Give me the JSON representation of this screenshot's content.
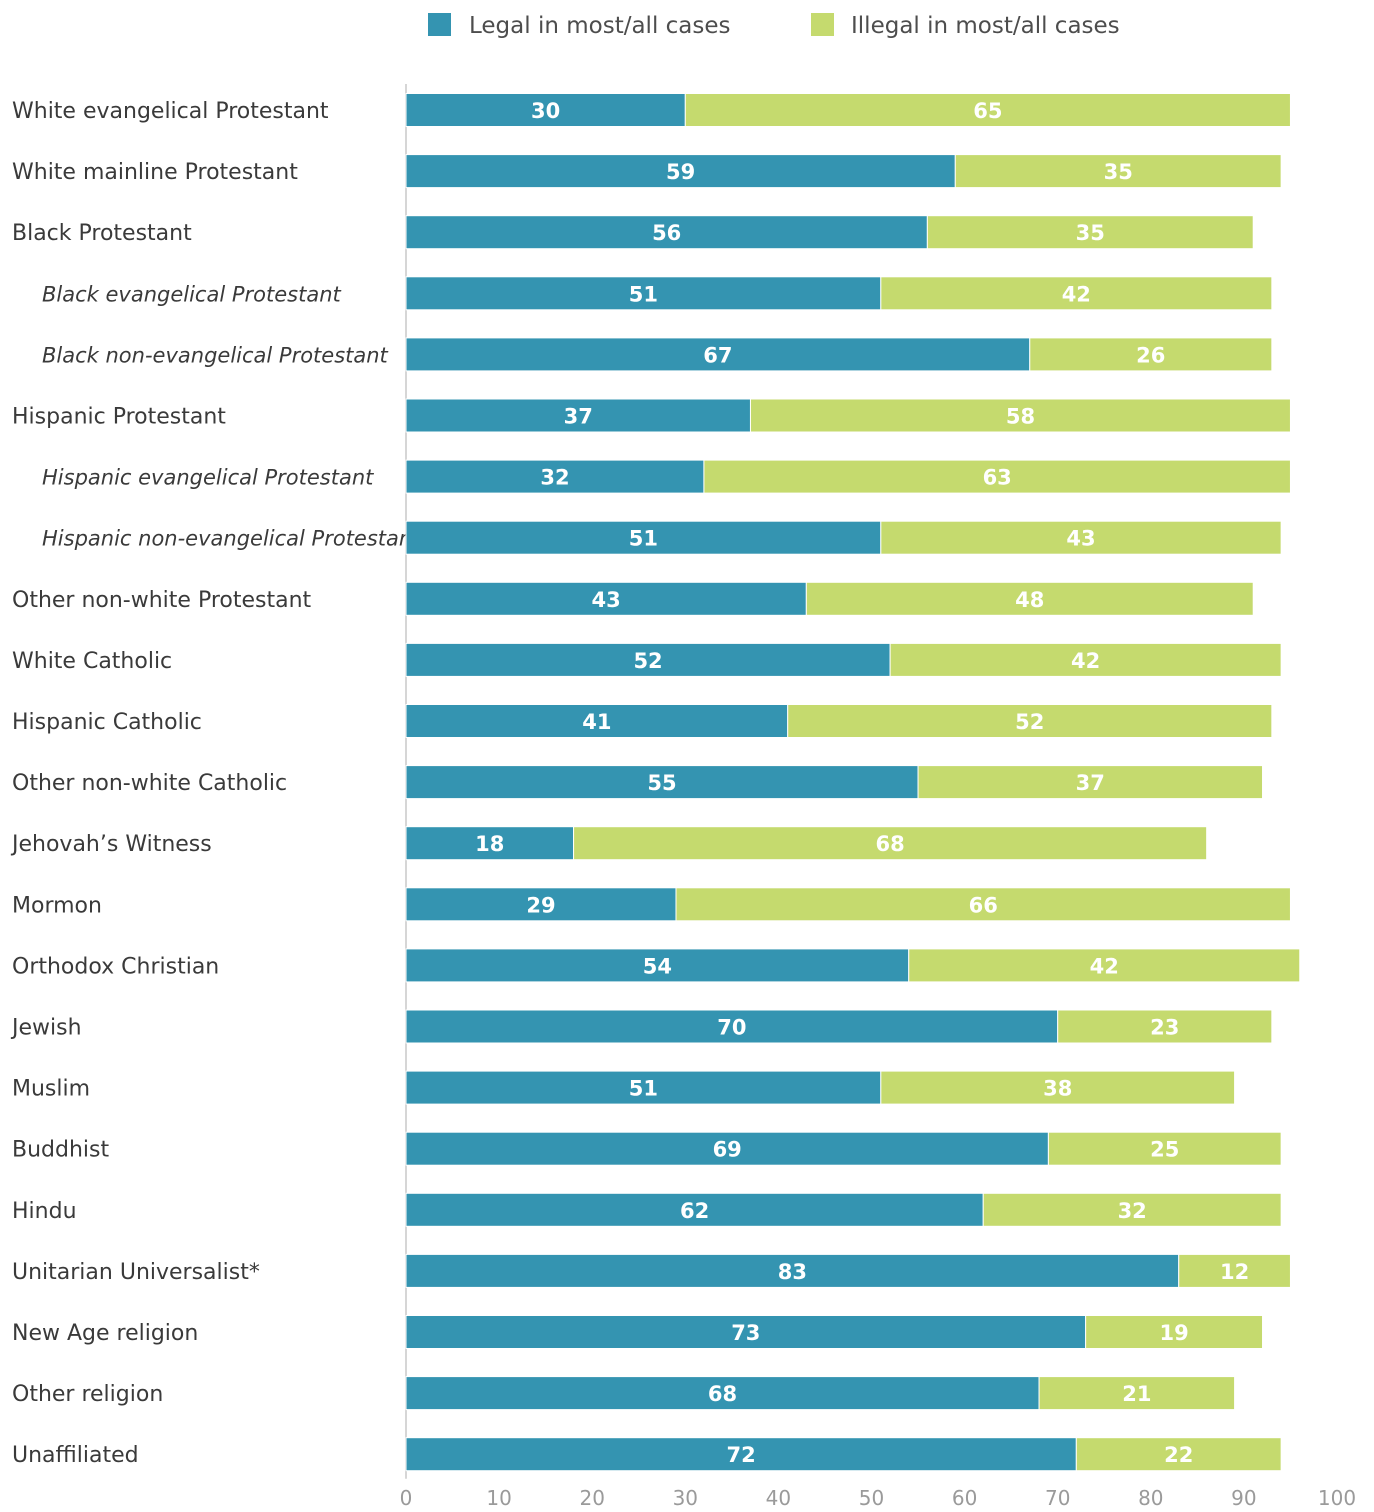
{
  "chart_data": {
    "type": "bar",
    "orientation": "horizontal",
    "stacked": true,
    "legend_position": "top",
    "grid": false,
    "xlim": [
      0,
      100
    ],
    "x_ticks": [
      0,
      10,
      20,
      30,
      40,
      50,
      60,
      70,
      80,
      90,
      100
    ],
    "categories": [
      "White evangelical Protestant",
      "White mainline Protestant",
      "Black Protestant",
      "Black evangelical Protestant",
      "Black non-evangelical Protestant",
      "Hispanic Protestant",
      "Hispanic evangelical Protestant",
      "Hispanic non-evangelical Protestant",
      "Other non-white Protestant",
      "White Catholic",
      "Hispanic Catholic",
      "Other non-white Catholic",
      "Jehovah’s Witness",
      "Mormon",
      "Orthodox Christian",
      "Jewish",
      "Muslim",
      "Buddhist",
      "Hindu",
      "Unitarian Universalist*",
      "New Age religion",
      "Other religion",
      "Unaffiliated"
    ],
    "subcategory_flags": [
      false,
      false,
      false,
      true,
      true,
      false,
      true,
      true,
      false,
      false,
      false,
      false,
      false,
      false,
      false,
      false,
      false,
      false,
      false,
      false,
      false,
      false,
      false
    ],
    "series": [
      {
        "name": "Legal in most/all cases",
        "color": "#3494b1",
        "values": [
          30,
          59,
          56,
          51,
          67,
          37,
          32,
          51,
          43,
          52,
          41,
          55,
          18,
          29,
          54,
          70,
          51,
          69,
          62,
          83,
          73,
          68,
          72
        ]
      },
      {
        "name": "Illegal in most/all cases",
        "color": "#c5da6e",
        "values": [
          65,
          35,
          35,
          42,
          26,
          58,
          63,
          43,
          48,
          42,
          52,
          37,
          68,
          66,
          42,
          23,
          38,
          25,
          32,
          12,
          19,
          21,
          22
        ]
      }
    ]
  }
}
